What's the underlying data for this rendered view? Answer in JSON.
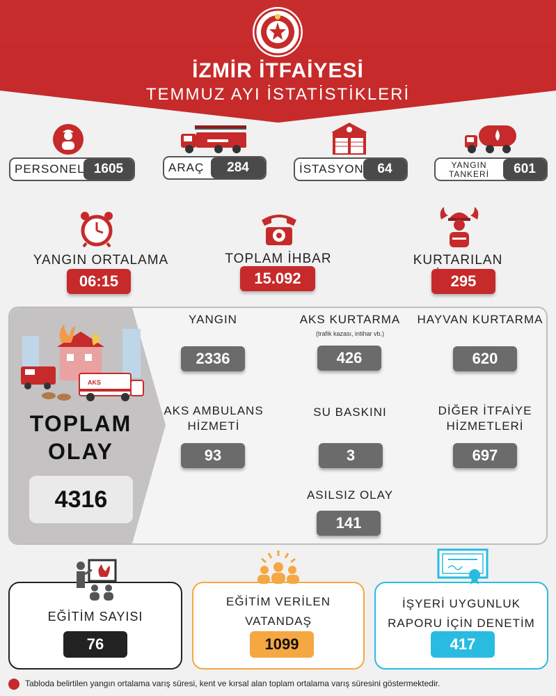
{
  "header": {
    "title": "İZMİR İTFAİYESİ",
    "subtitle": "TEMMUZ AYI İSTATİSTİKLERİ",
    "emblem_icon": "fire-department-emblem",
    "color": "#c62a2a"
  },
  "resources": [
    {
      "label": "PERSONEL",
      "value": "1605",
      "icon": "firefighter-icon"
    },
    {
      "label": "ARAÇ",
      "value": "284",
      "icon": "fire-truck-icon"
    },
    {
      "label": "İSTASYON",
      "value": "64",
      "icon": "fire-station-icon"
    },
    {
      "label": "YANGIN TANKERİ",
      "label_line1": "YANGIN",
      "label_line2": "TANKERİ",
      "value": "601",
      "icon": "tanker-truck-icon"
    }
  ],
  "key_stats": [
    {
      "label": "YANGIN ORTALAMA VARIŞ",
      "value": "06:15",
      "icon": "alarm-clock-icon"
    },
    {
      "label": "TOPLAM İHBAR",
      "value": "15.092",
      "icon": "telephone-icon"
    },
    {
      "label": "KURTARILAN İNSAN",
      "value": "295",
      "icon": "rescuer-icon"
    }
  ],
  "incidents": {
    "total_label_line1": "TOPLAM",
    "total_label_line2": "OLAY",
    "total_value": "4316",
    "items": [
      {
        "label": "YANGIN",
        "value": "2336"
      },
      {
        "label": "AKS KURTARMA",
        "note": "(trafik kazası, intihar vb.)",
        "value": "426"
      },
      {
        "label": "HAYVAN KURTARMA",
        "value": "620"
      },
      {
        "label_line1": "AKS AMBULANS",
        "label_line2": "HİZMETİ",
        "value": "93"
      },
      {
        "label": "SU BASKINI",
        "value": "3"
      },
      {
        "label_line1": "DİĞER İTFAİYE",
        "label_line2": "HİZMETLERİ",
        "value": "697"
      },
      {
        "label": "ASILSIZ OLAY",
        "value": "141"
      }
    ],
    "illustration_text": "AKS"
  },
  "training": [
    {
      "label": "EĞİTİM SAYISI",
      "value": "76",
      "icon": "training-icon",
      "color": "#222222"
    },
    {
      "label_line1": "EĞİTİM VERİLEN",
      "label_line2": "VATANDAŞ",
      "value": "1099",
      "icon": "audience-icon",
      "color": "#f5a742"
    },
    {
      "label_line1": "İŞYERİ UYGUNLUK",
      "label_line2": "RAPORU İÇİN DENETİM",
      "value": "417",
      "icon": "certificate-icon",
      "color": "#29bce0"
    }
  ],
  "footnote": "Tabloda belirtilen yangın ortalama varış süresi, kent ve kırsal alan toplam ortalama varış süresini göstermektedir."
}
